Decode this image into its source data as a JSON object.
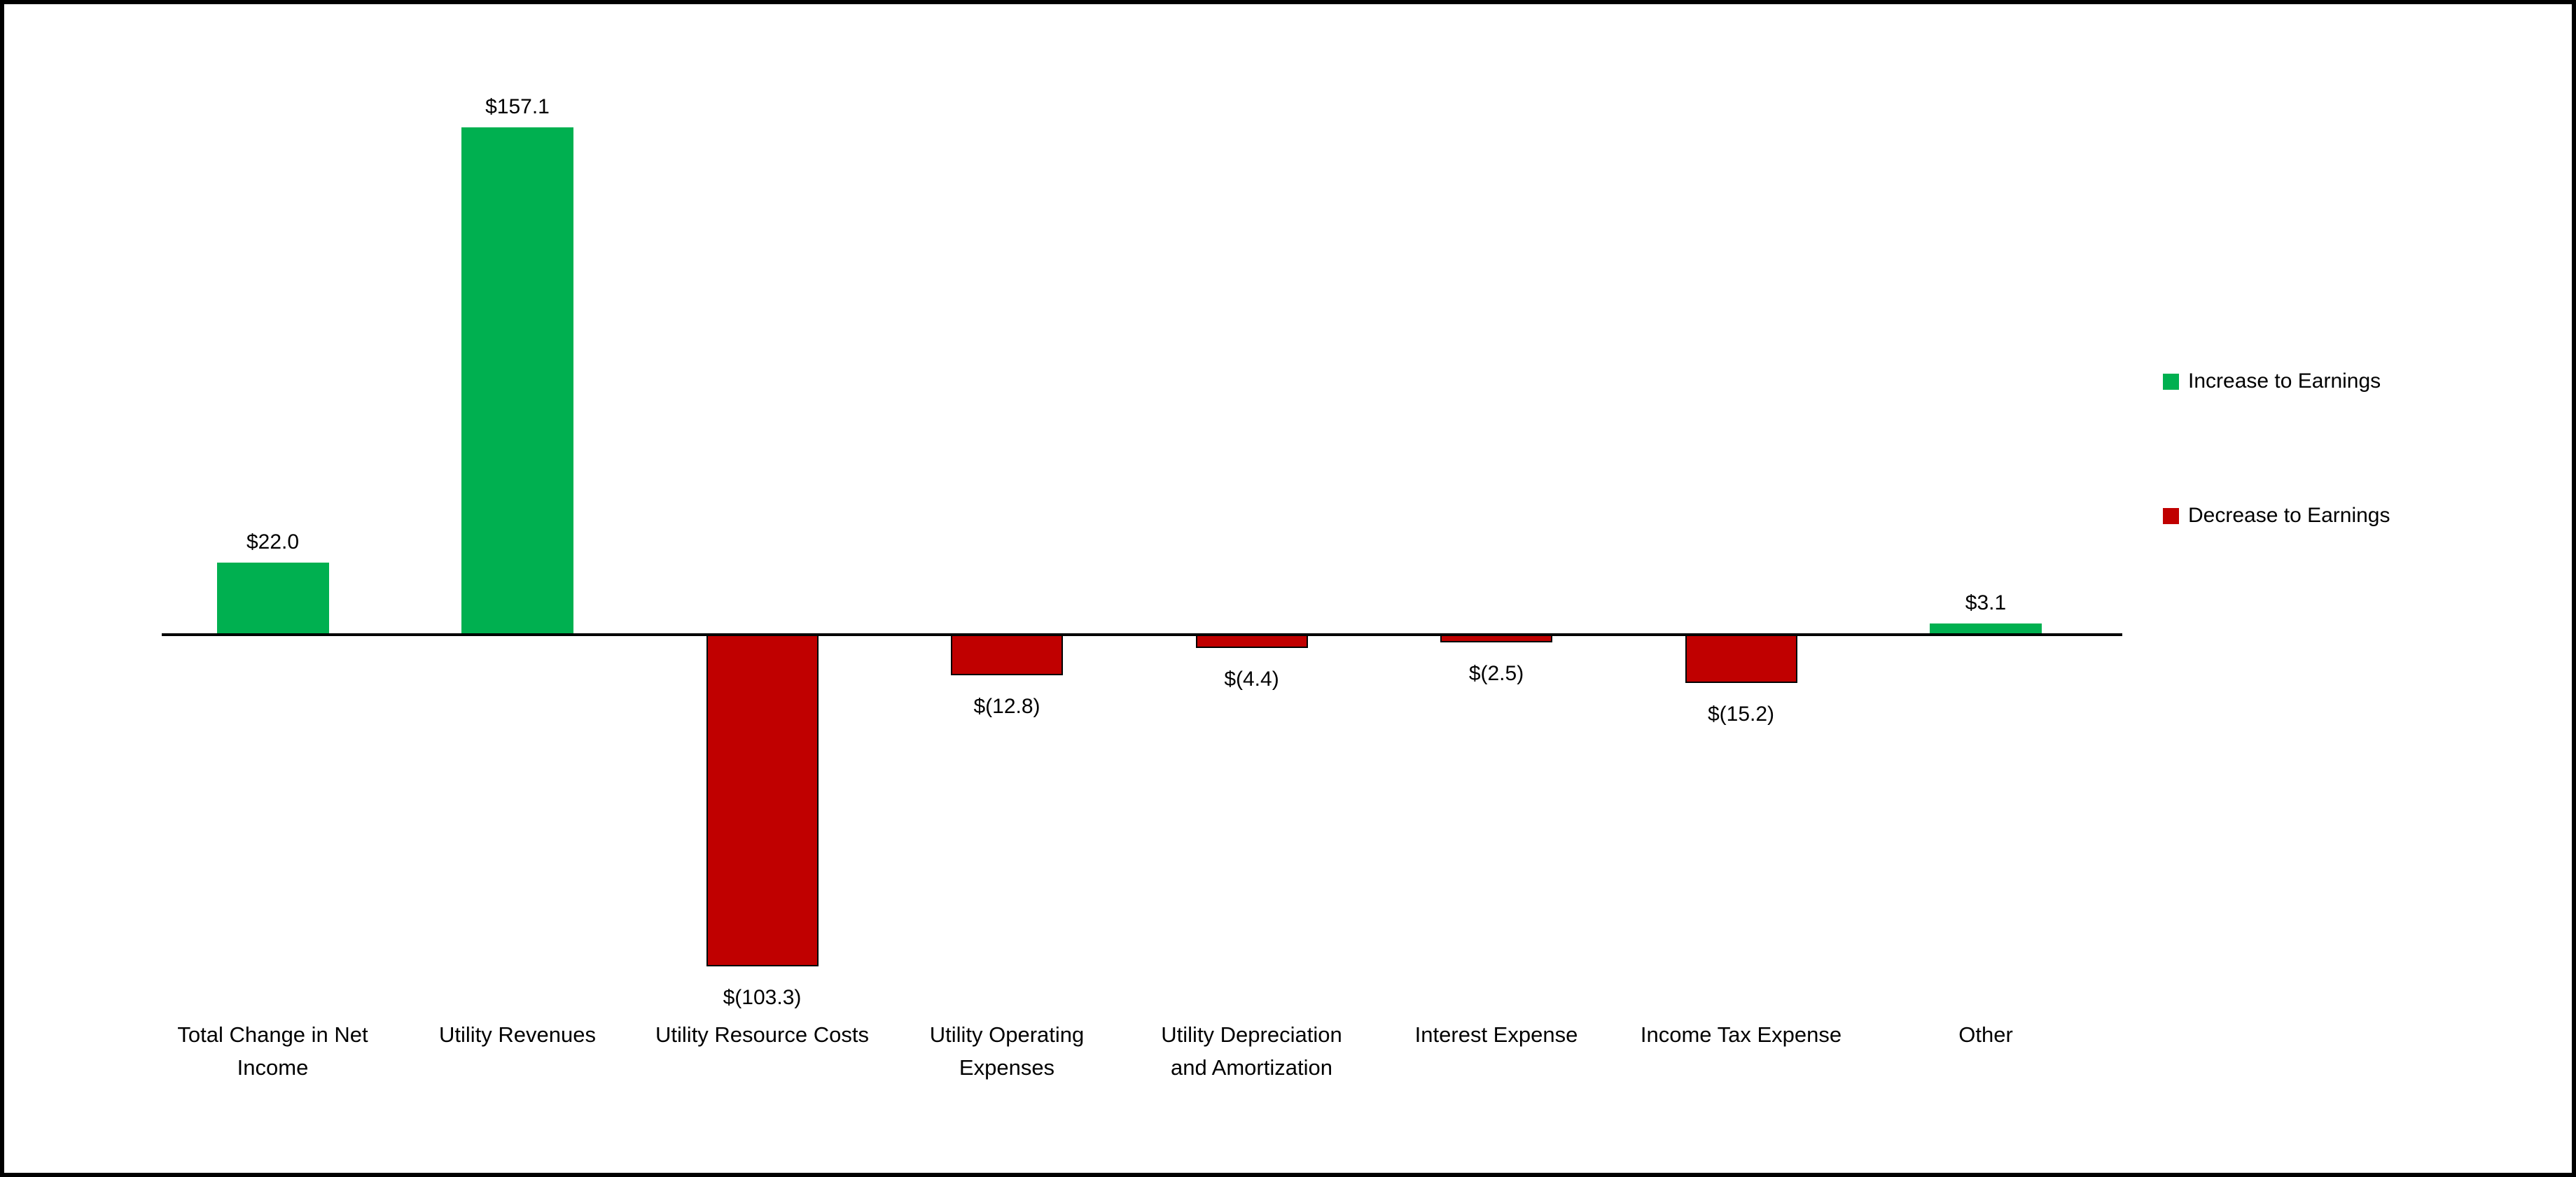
{
  "chart_data": {
    "type": "bar",
    "categories": [
      "Total Change in Net Income",
      "Utility Revenues",
      "Utility Resource Costs",
      "Utility Operating Expenses",
      "Utility Depreciation and Amortization",
      "Interest Expense",
      "Income Tax Expense",
      "Other"
    ],
    "values": [
      22.0,
      157.1,
      -103.3,
      -12.8,
      -4.4,
      -2.5,
      -15.2,
      3.1
    ],
    "value_labels": [
      "$22.0",
      "$157.1",
      "$(103.3)",
      "$(12.8)",
      "$(4.4)",
      "$(2.5)",
      "$(15.2)",
      "$3.1"
    ],
    "title": "",
    "xlabel": "",
    "ylabel": "",
    "ylim": [
      -120,
      170
    ],
    "grid": false,
    "legend_position": "right",
    "axis_color": "#000000",
    "background_color": "#ffffff",
    "increase_color": "#00B050",
    "decrease_color": "#C00000",
    "legend": [
      {
        "label": "Increase to Earnings",
        "color": "#00B050"
      },
      {
        "label": "Decrease to Earnings",
        "color": "#C00000"
      }
    ]
  }
}
